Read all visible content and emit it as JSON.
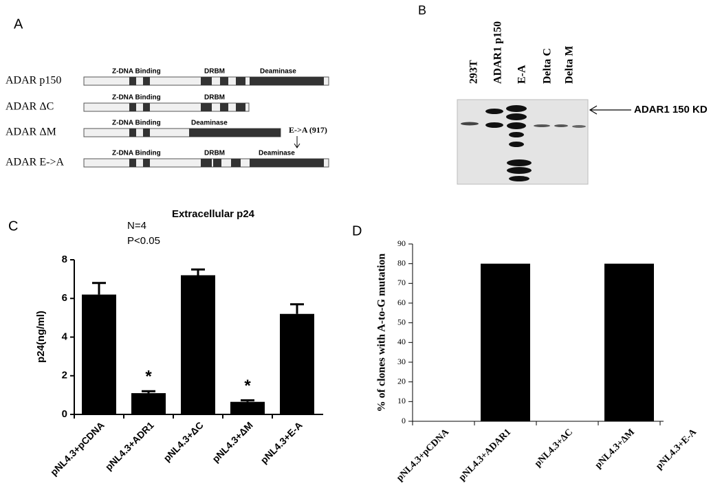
{
  "panel_a": {
    "label": "A",
    "constructs": [
      {
        "name": "ADAR p150",
        "domains": [
          "Z-DNA Binding",
          "DRBM",
          "Deaminase"
        ]
      },
      {
        "name": "ADAR ΔC",
        "domains": [
          "Z-DNA Binding",
          "DRBM"
        ]
      },
      {
        "name": "ADAR ΔM",
        "domains": [
          "Z-DNA Binding",
          "Deaminase"
        ]
      },
      {
        "name": "ADAR E->A",
        "domains": [
          "Z-DNA Binding",
          "DRBM",
          "Deaminase"
        ]
      }
    ],
    "annotation": "E->A (917)"
  },
  "panel_b": {
    "label": "B",
    "lanes": [
      "293T",
      "ADAR1 p150",
      "E-A",
      "Delta C",
      "Delta M"
    ],
    "annotation": "ADAR1 150 KD"
  },
  "chart_data": [
    {
      "type": "bar",
      "panel_label": "C",
      "title": "Extracellular p24",
      "annotations": [
        "N=4",
        "P<0.05"
      ],
      "y_label": "p24(ng/ml)",
      "categories": [
        "pNL4.3+pCDNA",
        "pNL4.3+ADR1",
        "pNL4.3+ΔC",
        "pNL4.3+ΔM",
        "pNL4.3+E-A"
      ],
      "values": [
        6.2,
        1.1,
        7.2,
        0.65,
        5.2
      ],
      "errors": [
        0.6,
        0.1,
        0.3,
        0.08,
        0.5
      ],
      "markers": [
        null,
        "*",
        null,
        "*",
        null
      ],
      "color": "#000000",
      "ylim": [
        0,
        8
      ],
      "yticks": [
        0,
        2,
        4,
        6,
        8
      ]
    },
    {
      "type": "bar",
      "panel_label": "D",
      "y_label": "% of clones with A-to-G mutation",
      "categories": [
        "pNL4.3+pCDNA",
        "pNL4.3+ADAR1",
        "pNL4.3+ΔC",
        "pNL4.3+ΔM",
        "pNL4.3+E-A"
      ],
      "values": [
        0,
        80,
        0,
        80,
        0
      ],
      "color": "#000000",
      "ylim": [
        0,
        90
      ],
      "yticks": [
        0,
        10,
        20,
        30,
        40,
        50,
        60,
        70,
        80,
        90
      ]
    }
  ]
}
